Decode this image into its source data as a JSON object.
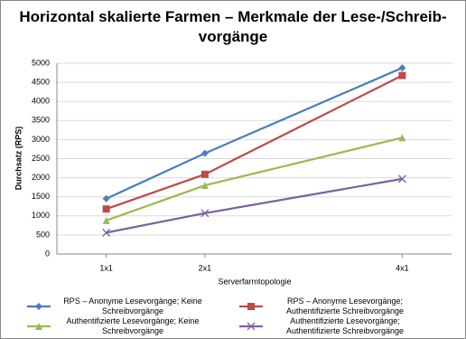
{
  "chart_data": {
    "type": "line",
    "title": "Horizontal skalierte Farmen – Merkmale der Lese-/Schreib-vorgänge",
    "x_label": "Serverfarmtopologie",
    "y_label": "Durchsatz (RPS)",
    "x": [
      1,
      2,
      4
    ],
    "xlim": [
      0.5,
      4.5
    ],
    "xticks": [
      {
        "value": 1,
        "label": "1x1"
      },
      {
        "value": 2,
        "label": "2x1"
      },
      {
        "value": 4,
        "label": "4x1"
      }
    ],
    "ylim": [
      0,
      5000
    ],
    "yticks": [
      0,
      500,
      1000,
      1500,
      2000,
      2500,
      3000,
      3500,
      4000,
      4500,
      5000
    ],
    "grid": true,
    "legend": "bottom",
    "series": [
      {
        "name": "RPS – Anonyme Lesevorgänge; Keine Schreibvorgänge",
        "color": "#4a7ebb",
        "marker": "diamond",
        "values": [
          1450,
          2640,
          4880
        ]
      },
      {
        "name": "RPS – Anonyme Lesevorgänge; Authentifizierte Schreibvorgänge",
        "color": "#be4b48",
        "marker": "square",
        "values": [
          1180,
          2090,
          4680
        ]
      },
      {
        "name": "Authentifizierte Lesevorgänge; Keine Schreibvorgänge",
        "color": "#98b954",
        "marker": "triangle",
        "values": [
          880,
          1800,
          3050
        ]
      },
      {
        "name": "Authentifizierte Lesevorgänge; Authentifizierte Schreibvorgänge",
        "color": "#7d60a0",
        "marker": "x",
        "values": [
          560,
          1070,
          1970
        ]
      }
    ]
  }
}
